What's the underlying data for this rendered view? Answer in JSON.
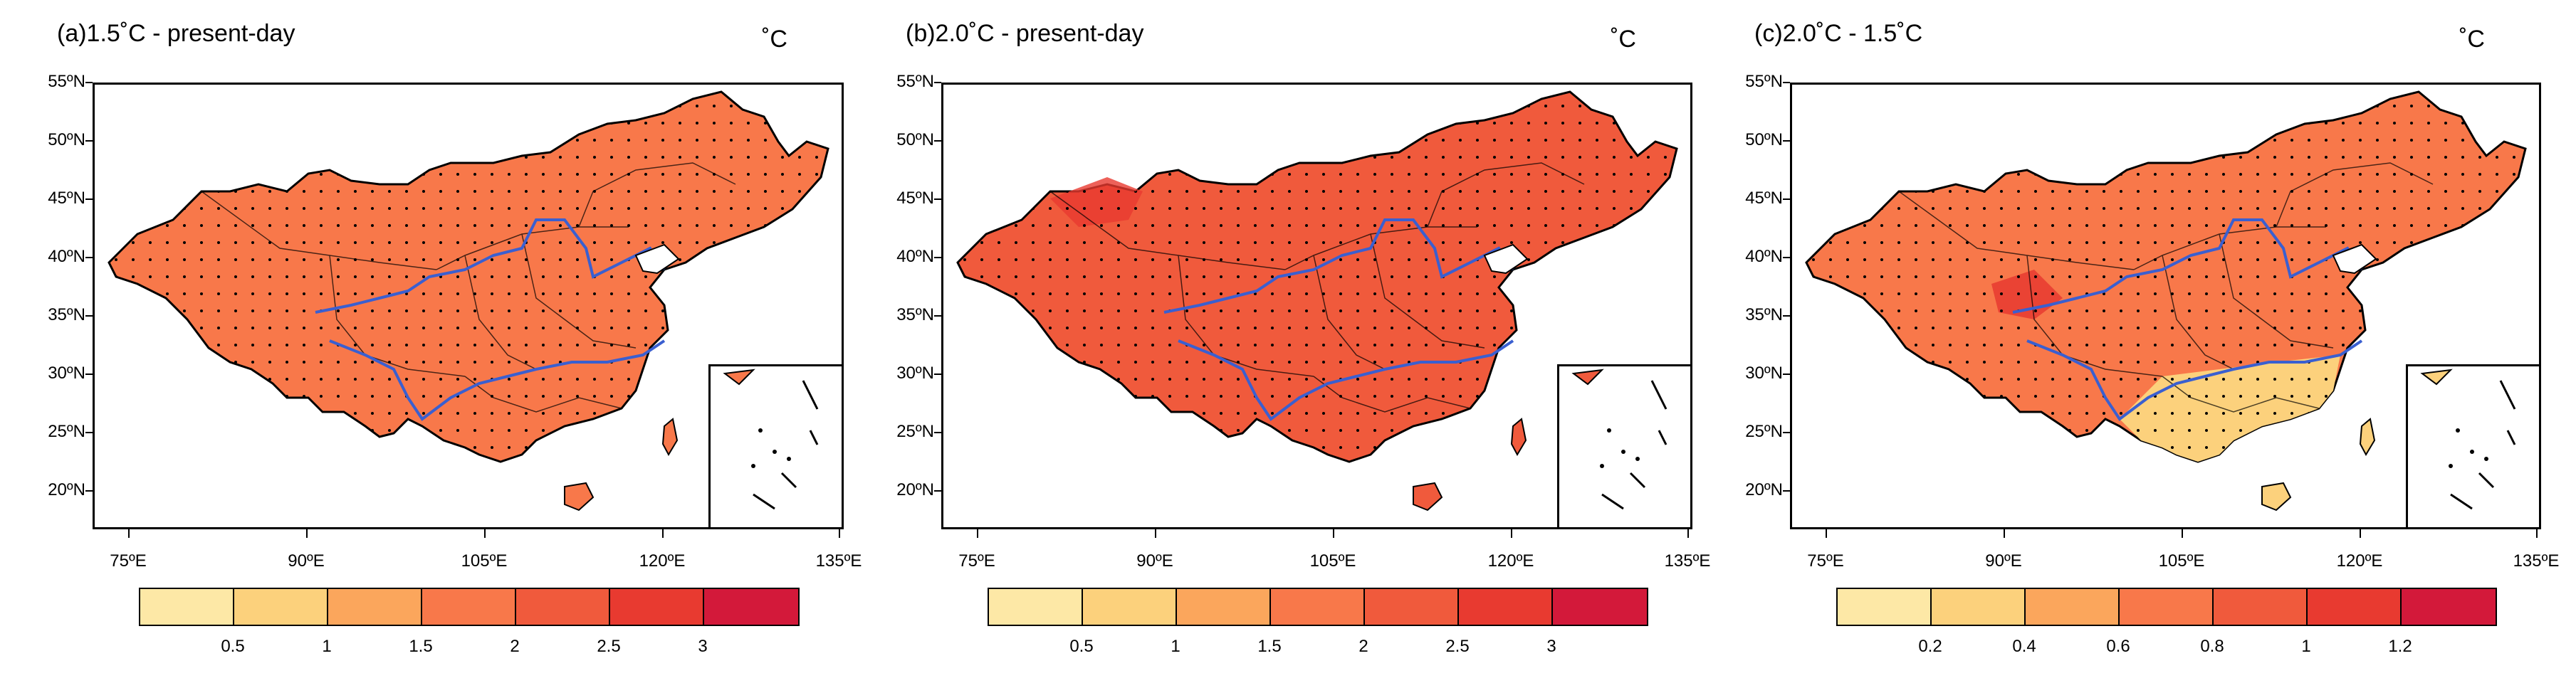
{
  "figure": {
    "colors": [
      "#fde8a6",
      "#fcd17c",
      "#fba65c",
      "#f8784a",
      "#f05a3c",
      "#e83a30",
      "#d3193a"
    ],
    "axes": {
      "lat_labels": [
        "55ºN",
        "50ºN",
        "45ºN",
        "40ºN",
        "35ºN",
        "30ºN",
        "25ºN",
        "20ºN"
      ],
      "lon_labels": [
        "75ºE",
        "90ºE",
        "105ºE",
        "120ºE",
        "135ºE"
      ]
    },
    "icons": [
      "china-map-icon",
      "yellow-river-icon",
      "yangtze-river-icon",
      "stippling-icon",
      "south-china-sea-inset-icon"
    ]
  },
  "panels": [
    {
      "title": "(a)1.5˚C - present-day",
      "unit": "˚C",
      "colorbar_labels": [
        "0.5",
        "1",
        "1.5",
        "2",
        "2.5",
        "3"
      ],
      "dominant_color": "#f8784a"
    },
    {
      "title": "(b)2.0˚C - present-day",
      "unit": "˚C",
      "colorbar_labels": [
        "0.5",
        "1",
        "1.5",
        "2",
        "2.5",
        "3"
      ],
      "dominant_color": "#f05a3c"
    },
    {
      "title": "(c)2.0˚C - 1.5˚C",
      "unit": "˚C",
      "colorbar_labels": [
        "0.2",
        "0.4",
        "0.6",
        "0.8",
        "1",
        "1.2"
      ],
      "dominant_color": "#f8784a"
    }
  ]
}
